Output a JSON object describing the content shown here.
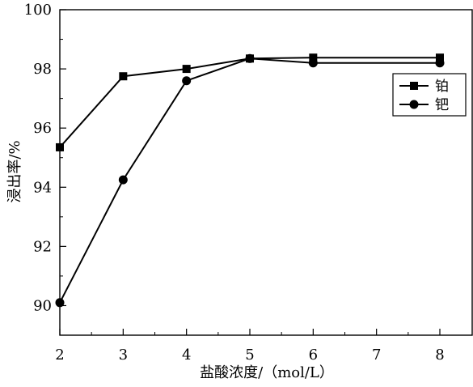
{
  "chart_data": {
    "type": "line",
    "xlabel": "盐酸浓度/（mol/L）",
    "ylabel": "浸出率/%",
    "x": [
      2,
      3,
      4,
      5,
      6,
      8
    ],
    "xlim": [
      2,
      8
    ],
    "ylim": [
      89,
      100
    ],
    "xticks": [
      2,
      3,
      4,
      5,
      6,
      7,
      8
    ],
    "yticks": [
      90,
      92,
      94,
      96,
      98,
      100
    ],
    "legend_position": "top-right",
    "grid": false,
    "series": [
      {
        "name": "铂",
        "marker": "square",
        "color": "#000000",
        "values": [
          95.35,
          97.75,
          98.0,
          98.35,
          98.38,
          98.38
        ]
      },
      {
        "name": "钯",
        "marker": "circle",
        "color": "#000000",
        "values": [
          90.1,
          94.25,
          97.6,
          98.35,
          98.2,
          98.2
        ]
      }
    ]
  }
}
